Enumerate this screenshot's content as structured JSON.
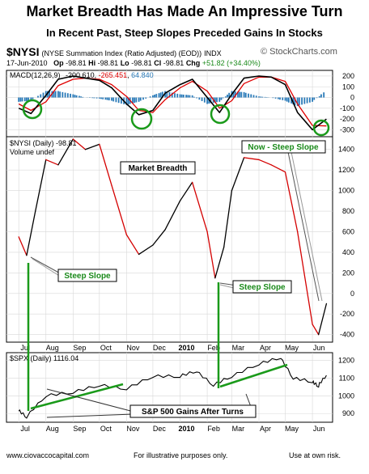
{
  "header": {
    "title": "Market Breadth Has Made An Impressive Turn",
    "subtitle": "In Recent Past, Steep Slopes Preceded Gains In Stocks"
  },
  "stock_header": {
    "symbol": "$NYSI",
    "name": "(NYSE Summation Index (Ratio Adjusted) (EOD))",
    "exchange": "INDX",
    "brand": "© StockCharts.com",
    "date": "17-Jun-2010",
    "op_label": "Op",
    "op": "-98.81",
    "hi_label": "Hi",
    "hi": "-98.81",
    "lo_label": "Lo",
    "lo": "-98.81",
    "cl_label": "Cl",
    "cl": "-98.81",
    "chg_label": "Chg",
    "chg": "+51.82 (+34.40%)"
  },
  "macd": {
    "label": "MACD(12,26,9)",
    "value": "-200.610",
    "signal": "-265.451",
    "hist": "64.840",
    "colors": {
      "macd": "#000000",
      "signal": "#e00000",
      "hist": "#2a7ab8"
    },
    "y_ticks": [
      "200",
      "100",
      "0",
      "-100",
      "-200",
      "-300"
    ]
  },
  "main": {
    "legend": "$NYSI (Daily) -98.81",
    "volume_note": "Volume undef",
    "y_ticks": [
      "1400",
      "1200",
      "1000",
      "800",
      "600",
      "400",
      "200",
      "0",
      "-200",
      "-400"
    ],
    "x_ticks": [
      "Jul",
      "Aug",
      "Sep",
      "Oct",
      "Nov",
      "Dec",
      "2010",
      "Feb",
      "Mar",
      "Apr",
      "May",
      "Jun"
    ]
  },
  "annotations": {
    "market_breadth": "Market Breadth",
    "steep_slope_1": "Steep Slope",
    "steep_slope_2": "Steep Slope",
    "now_steep": "Now - Steep Slope",
    "sp_gains": "S&P 500 Gains After Turns"
  },
  "spx": {
    "legend": "$SPX (Daily) 1116.04",
    "y_ticks": [
      "1200",
      "1100",
      "1000",
      "900"
    ],
    "x_ticks": [
      "Jul",
      "Aug",
      "Sep",
      "Oct",
      "Nov",
      "Dec",
      "2010",
      "Feb",
      "Mar",
      "Apr",
      "May",
      "Jun"
    ]
  },
  "footer": {
    "site": "www.ciovaccocapital.com",
    "note": "For illustrative purposes only.",
    "risk": "Use at own risk."
  },
  "chart_data": [
    {
      "type": "line",
      "title": "MACD(12,26,9)",
      "x": [
        "2009-07-01",
        "2009-07-15",
        "2009-08-01",
        "2009-08-15",
        "2009-09-01",
        "2009-09-15",
        "2009-10-01",
        "2009-10-15",
        "2009-11-01",
        "2009-11-15",
        "2009-12-01",
        "2009-12-15",
        "2010-01-01",
        "2010-01-15",
        "2010-02-01",
        "2010-02-15",
        "2010-03-01",
        "2010-03-15",
        "2010-04-01",
        "2010-04-15",
        "2010-05-01",
        "2010-05-15",
        "2010-06-01",
        "2010-06-17"
      ],
      "series": [
        {
          "name": "MACD",
          "values": [
            -100,
            -150,
            20,
            170,
            200,
            180,
            160,
            90,
            -60,
            -160,
            -120,
            40,
            120,
            170,
            0,
            -140,
            30,
            180,
            200,
            190,
            120,
            -140,
            -300,
            -201
          ]
        },
        {
          "name": "Signal",
          "values": [
            -60,
            -120,
            -40,
            110,
            170,
            180,
            170,
            120,
            10,
            -120,
            -140,
            -20,
            90,
            150,
            60,
            -100,
            -30,
            130,
            190,
            190,
            150,
            -60,
            -260,
            -265
          ]
        },
        {
          "name": "Histogram",
          "values": [
            -40,
            -30,
            60,
            60,
            30,
            0,
            -10,
            -30,
            -70,
            -40,
            20,
            60,
            30,
            20,
            -60,
            -40,
            60,
            50,
            10,
            0,
            -30,
            -80,
            -40,
            65
          ]
        }
      ],
      "ylim": [
        -350,
        230
      ]
    },
    {
      "type": "line",
      "title": "$NYSI (Daily) -98.81",
      "x": [
        "2009-07-01",
        "2009-07-10",
        "2009-07-20",
        "2009-08-01",
        "2009-08-15",
        "2009-09-01",
        "2009-09-15",
        "2009-10-01",
        "2009-10-15",
        "2009-11-01",
        "2009-11-15",
        "2009-12-01",
        "2009-12-15",
        "2010-01-01",
        "2010-01-15",
        "2010-02-01",
        "2010-02-10",
        "2010-02-20",
        "2010-03-01",
        "2010-03-15",
        "2010-04-01",
        "2010-04-15",
        "2010-05-01",
        "2010-05-15",
        "2010-06-01",
        "2010-06-08",
        "2010-06-17"
      ],
      "series": [
        {
          "name": "$NYSI",
          "values": [
            550,
            370,
            800,
            1300,
            1250,
            1500,
            1400,
            1450,
            1050,
            570,
            380,
            470,
            620,
            900,
            1080,
            600,
            150,
            450,
            1000,
            1320,
            1300,
            1250,
            1180,
            600,
            -300,
            -400,
            -99
          ]
        }
      ],
      "ylim": [
        -450,
        1500
      ]
    },
    {
      "type": "line",
      "title": "$SPX (Daily) 1116.04",
      "x": [
        "2009-07-01",
        "2009-07-10",
        "2009-08-01",
        "2009-09-01",
        "2009-10-01",
        "2009-11-01",
        "2009-12-01",
        "2010-01-01",
        "2010-01-20",
        "2010-02-08",
        "2010-03-01",
        "2010-04-01",
        "2010-04-26",
        "2010-05-10",
        "2010-06-01",
        "2010-06-08",
        "2010-06-17"
      ],
      "series": [
        {
          "name": "$SPX",
          "values": [
            920,
            880,
            1000,
            1020,
            1060,
            1040,
            1110,
            1110,
            1140,
            1060,
            1110,
            1180,
            1217,
            1100,
            1080,
            1055,
            1116
          ]
        }
      ],
      "ylim": [
        860,
        1230
      ]
    }
  ]
}
